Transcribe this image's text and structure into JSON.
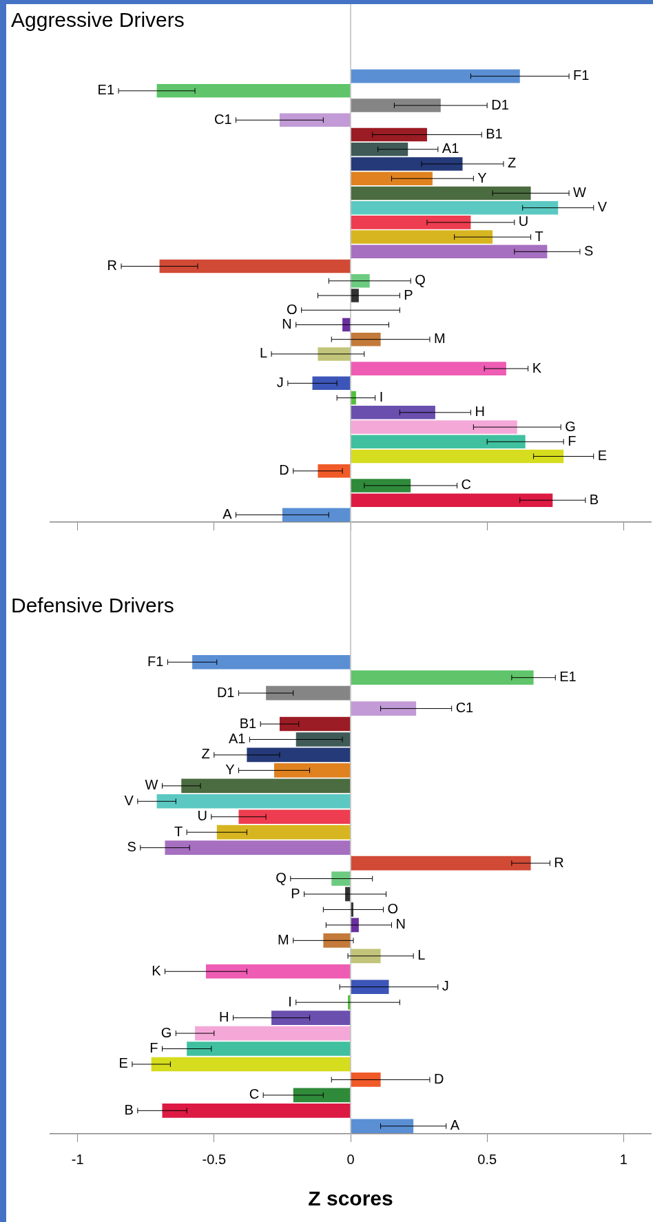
{
  "chart_data": [
    {
      "type": "bar",
      "orientation": "horizontal",
      "title": "Aggressive Drivers",
      "tick_labels": false,
      "xlim": [
        -1.1,
        1.1
      ],
      "xticks": [
        -1,
        -0.5,
        0,
        0.5,
        1
      ],
      "categories": [
        "F1",
        "E1",
        "D1",
        "C1",
        "B1",
        "A1",
        "Z",
        "Y",
        "W",
        "V",
        "U",
        "T",
        "S",
        "R",
        "Q",
        "P",
        "O",
        "N",
        "M",
        "L",
        "K",
        "J",
        "I",
        "H",
        "G",
        "F",
        "E",
        "D",
        "C",
        "B",
        "A"
      ],
      "values": [
        0.62,
        -0.71,
        0.33,
        -0.26,
        0.28,
        0.21,
        0.41,
        0.3,
        0.66,
        0.76,
        0.44,
        0.52,
        0.72,
        -0.7,
        0.07,
        0.03,
        0.0,
        -0.03,
        0.11,
        -0.12,
        0.57,
        -0.14,
        0.02,
        0.31,
        0.61,
        0.64,
        0.78,
        -0.12,
        0.22,
        0.74,
        -0.25
      ],
      "errors": [
        0.18,
        0.14,
        0.17,
        0.16,
        0.2,
        0.11,
        0.15,
        0.15,
        0.14,
        0.13,
        0.16,
        0.14,
        0.12,
        0.14,
        0.15,
        0.15,
        0.18,
        0.17,
        0.18,
        0.17,
        0.08,
        0.09,
        0.07,
        0.13,
        0.16,
        0.14,
        0.11,
        0.09,
        0.17,
        0.12,
        0.17
      ],
      "colors": [
        "#5b8fd4",
        "#5fc46a",
        "#858585",
        "#c19ad6",
        "#9b1c24",
        "#3f5a57",
        "#253a78",
        "#e0821f",
        "#4b6b40",
        "#5bc9c2",
        "#ee3d50",
        "#d7b520",
        "#a66fc0",
        "#d14a36",
        "#6ccb80",
        "#333333",
        "#333333",
        "#6a2f9e",
        "#c47a3a",
        "#c2c47a",
        "#ee5cb4",
        "#3c55b8",
        "#55c040",
        "#6a4fae",
        "#f4a8d8",
        "#40c09e",
        "#d6dc1e",
        "#f05a28",
        "#2f8a3a",
        "#dc1a44",
        "#5b8fd4"
      ]
    },
    {
      "type": "bar",
      "orientation": "horizontal",
      "title": "Defensive Drivers",
      "xlabel": "Z scores",
      "tick_labels": "x",
      "xlim": [
        -1.1,
        1.1
      ],
      "xticks": [
        -1,
        -0.5,
        0,
        0.5,
        1
      ],
      "categories": [
        "F1",
        "E1",
        "D1",
        "C1",
        "B1",
        "A1",
        "Z",
        "Y",
        "W",
        "V",
        "U",
        "T",
        "S",
        "R",
        "Q",
        "P",
        "O",
        "N",
        "M",
        "L",
        "K",
        "J",
        "I",
        "H",
        "G",
        "F",
        "E",
        "D",
        "C",
        "B",
        "A"
      ],
      "values": [
        -0.58,
        0.67,
        -0.31,
        0.24,
        -0.26,
        -0.2,
        -0.38,
        -0.28,
        -0.62,
        -0.71,
        -0.41,
        -0.49,
        -0.68,
        0.66,
        -0.07,
        -0.02,
        0.01,
        0.03,
        -0.1,
        0.11,
        -0.53,
        0.14,
        -0.01,
        -0.29,
        -0.57,
        -0.6,
        -0.73,
        0.11,
        -0.21,
        -0.69,
        0.23
      ],
      "errors": [
        0.09,
        0.08,
        0.1,
        0.13,
        0.07,
        0.17,
        0.12,
        0.13,
        0.07,
        0.07,
        0.1,
        0.11,
        0.09,
        0.07,
        0.15,
        0.15,
        0.11,
        0.12,
        0.11,
        0.12,
        0.15,
        0.18,
        0.19,
        0.14,
        0.07,
        0.09,
        0.07,
        0.18,
        0.11,
        0.09,
        0.12
      ],
      "colors": [
        "#5b8fd4",
        "#5fc46a",
        "#858585",
        "#c19ad6",
        "#9b1c24",
        "#3f5a57",
        "#253a78",
        "#e0821f",
        "#4b6b40",
        "#5bc9c2",
        "#ee3d50",
        "#d7b520",
        "#a66fc0",
        "#d14a36",
        "#6ccb80",
        "#333333",
        "#333333",
        "#6a2f9e",
        "#c47a3a",
        "#c2c47a",
        "#ee5cb4",
        "#3c55b8",
        "#55c040",
        "#6a4fae",
        "#f4a8d8",
        "#40c09e",
        "#d6dc1e",
        "#f05a28",
        "#2f8a3a",
        "#dc1a44",
        "#5b8fd4"
      ]
    }
  ]
}
